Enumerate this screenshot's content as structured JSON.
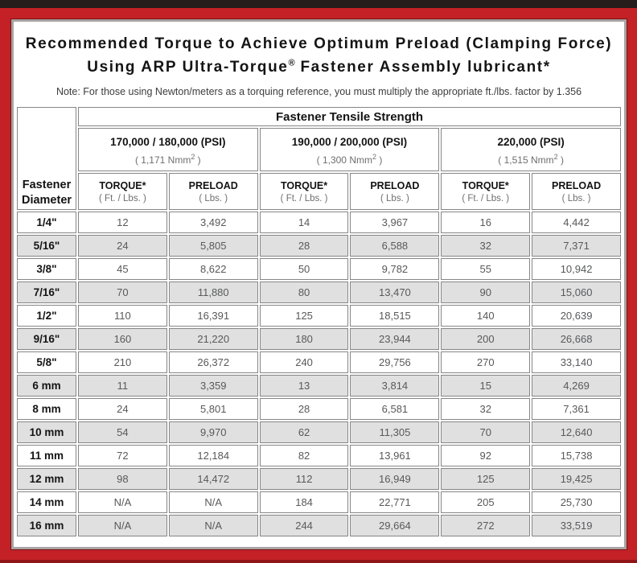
{
  "colors": {
    "frame_red": "#c32126",
    "top_strip_dark": "#241d1b",
    "panel_border_gray": "#a8a4a3",
    "header_gray": "#d6d6d6",
    "stripe_gray": "#e0e0e0",
    "value_text_gray": "#58595b"
  },
  "title": {
    "line1": "Recommended Torque to Achieve Optimum Preload (Clamping Force)",
    "line2_pre": "Using ARP Ultra-Torque",
    "line2_sup": "®",
    "line2_post": " Fastener Assembly lubricant*"
  },
  "note": "Note: For those using Newton/meters as a torquing reference, you must multiply the appropriate ft./lbs. factor by 1.356",
  "table": {
    "corner_line1": "Fastener",
    "corner_line2": "Diameter",
    "group_header": "Fastener Tensile Strength",
    "torque_label": "TORQUE*",
    "torque_unit": "( Ft. / Lbs. )",
    "preload_label": "PRELOAD",
    "preload_unit": "( Lbs. )",
    "strength_groups": [
      {
        "psi": "170,000 / 180,000 (PSI)",
        "nmm_prefix": "( 1,171 Nmm",
        "nmm_sup": "2",
        "nmm_suffix": " )"
      },
      {
        "psi": "190,000 / 200,000 (PSI)",
        "nmm_prefix": "( 1,300 Nmm",
        "nmm_sup": "2",
        "nmm_suffix": " )"
      },
      {
        "psi": "220,000 (PSI)",
        "nmm_prefix": "( 1,515 Nmm",
        "nmm_sup": "2",
        "nmm_suffix": " )"
      }
    ],
    "rows": [
      {
        "dia": "1/4\"",
        "t1": "12",
        "p1": "3,492",
        "t2": "14",
        "p2": "3,967",
        "t3": "16",
        "p3": "4,442"
      },
      {
        "dia": "5/16\"",
        "t1": "24",
        "p1": "5,805",
        "t2": "28",
        "p2": "6,588",
        "t3": "32",
        "p3": "7,371"
      },
      {
        "dia": "3/8\"",
        "t1": "45",
        "p1": "8,622",
        "t2": "50",
        "p2": "9,782",
        "t3": "55",
        "p3": "10,942"
      },
      {
        "dia": "7/16\"",
        "t1": "70",
        "p1": "11,880",
        "t2": "80",
        "p2": "13,470",
        "t3": "90",
        "p3": "15,060"
      },
      {
        "dia": "1/2\"",
        "t1": "110",
        "p1": "16,391",
        "t2": "125",
        "p2": "18,515",
        "t3": "140",
        "p3": "20,639"
      },
      {
        "dia": "9/16\"",
        "t1": "160",
        "p1": "21,220",
        "t2": "180",
        "p2": "23,944",
        "t3": "200",
        "p3": "26,668"
      },
      {
        "dia": "5/8\"",
        "t1": "210",
        "p1": "26,372",
        "t2": "240",
        "p2": "29,756",
        "t3": "270",
        "p3": "33,140"
      },
      {
        "dia": "6 mm",
        "t1": "11",
        "p1": "3,359",
        "t2": "13",
        "p2": "3,814",
        "t3": "15",
        "p3": "4,269"
      },
      {
        "dia": "8 mm",
        "t1": "24",
        "p1": "5,801",
        "t2": "28",
        "p2": "6,581",
        "t3": "32",
        "p3": "7,361"
      },
      {
        "dia": "10 mm",
        "t1": "54",
        "p1": "9,970",
        "t2": "62",
        "p2": "11,305",
        "t3": "70",
        "p3": "12,640"
      },
      {
        "dia": "11 mm",
        "t1": "72",
        "p1": "12,184",
        "t2": "82",
        "p2": "13,961",
        "t3": "92",
        "p3": "15,738"
      },
      {
        "dia": "12 mm",
        "t1": "98",
        "p1": "14,472",
        "t2": "112",
        "p2": "16,949",
        "t3": "125",
        "p3": "19,425"
      },
      {
        "dia": "14 mm",
        "t1": "N/A",
        "p1": "N/A",
        "t2": "184",
        "p2": "22,771",
        "t3": "205",
        "p3": "25,730"
      },
      {
        "dia": "16 mm",
        "t1": "N/A",
        "p1": "N/A",
        "t2": "244",
        "p2": "29,664",
        "t3": "272",
        "p3": "33,519"
      }
    ]
  }
}
